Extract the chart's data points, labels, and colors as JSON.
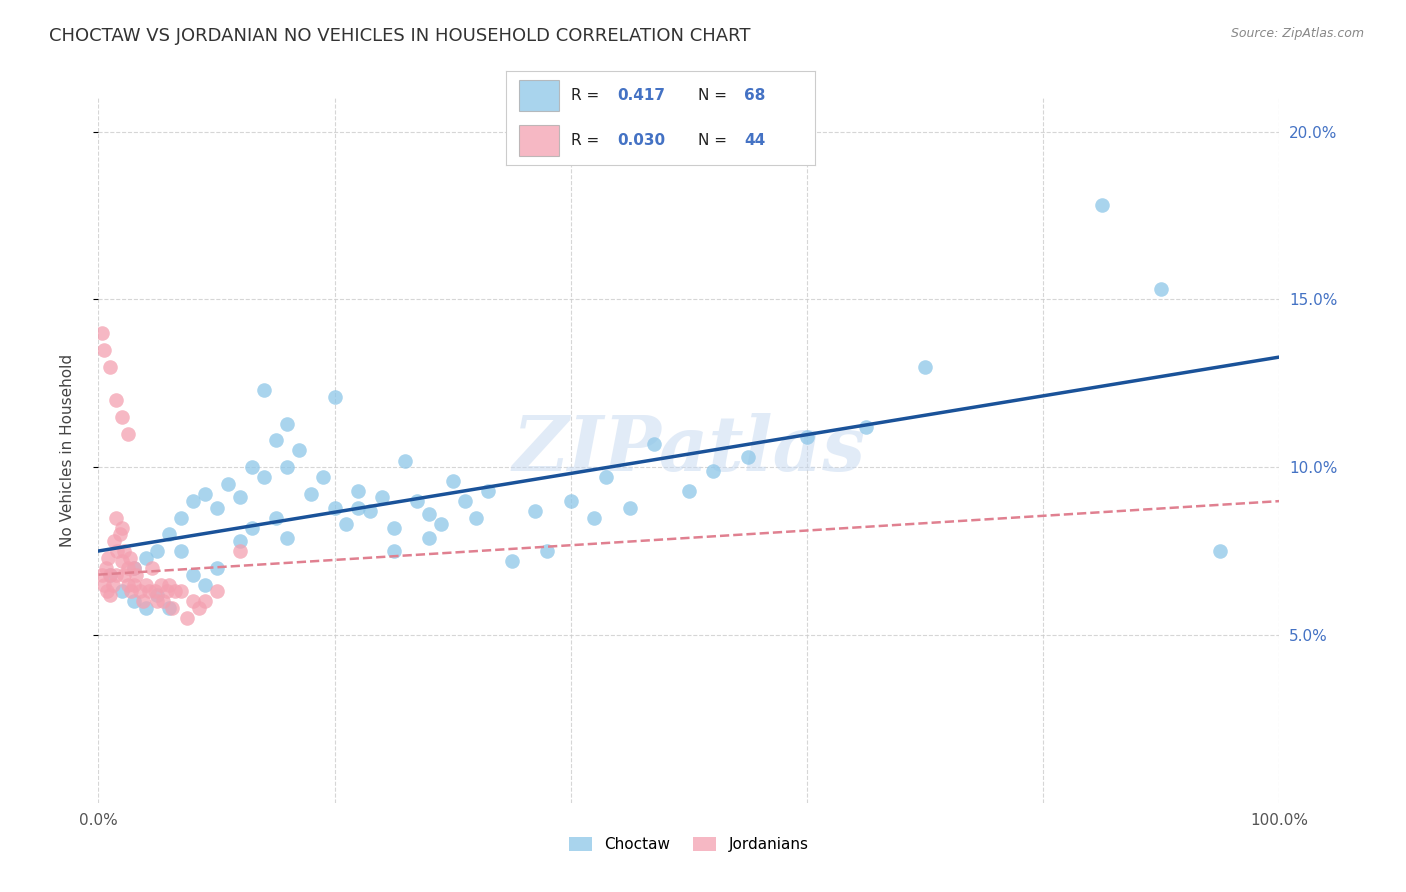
{
  "title": "CHOCTAW VS JORDANIAN NO VEHICLES IN HOUSEHOLD CORRELATION CHART",
  "source": "Source: ZipAtlas.com",
  "ylabel": "No Vehicles in Household",
  "xlim": [
    0,
    1.0
  ],
  "ylim": [
    0,
    0.21
  ],
  "xticks": [
    0.0,
    0.2,
    0.4,
    0.6,
    0.8,
    1.0
  ],
  "xticklabels": [
    "0.0%",
    "",
    "",
    "",
    "",
    "100.0%"
  ],
  "yticks": [
    0.05,
    0.1,
    0.15,
    0.2
  ],
  "yticklabels": [
    "5.0%",
    "10.0%",
    "15.0%",
    "20.0%"
  ],
  "choctaw_color": "#8dc6e8",
  "jordanian_color": "#f4a0b0",
  "choctaw_line_color": "#1a5299",
  "jordanian_line_color": "#e08090",
  "background_color": "#ffffff",
  "grid_color": "#cccccc",
  "watermark": "ZIPatlas",
  "legend_R_color": "#4472c4",
  "legend_N_color": "#4472c4",
  "choctaw_x": [
    0.01,
    0.02,
    0.03,
    0.03,
    0.04,
    0.04,
    0.05,
    0.05,
    0.06,
    0.06,
    0.07,
    0.07,
    0.08,
    0.08,
    0.09,
    0.09,
    0.1,
    0.1,
    0.11,
    0.12,
    0.12,
    0.13,
    0.13,
    0.14,
    0.15,
    0.15,
    0.16,
    0.16,
    0.17,
    0.18,
    0.19,
    0.2,
    0.21,
    0.22,
    0.23,
    0.24,
    0.25,
    0.26,
    0.27,
    0.28,
    0.29,
    0.3,
    0.31,
    0.32,
    0.33,
    0.35,
    0.37,
    0.38,
    0.4,
    0.42,
    0.43,
    0.45,
    0.47,
    0.5,
    0.52,
    0.55,
    0.6,
    0.65,
    0.7,
    0.85,
    0.9,
    0.95,
    0.14,
    0.16,
    0.2,
    0.22,
    0.25,
    0.28
  ],
  "choctaw_y": [
    0.068,
    0.063,
    0.07,
    0.06,
    0.073,
    0.058,
    0.075,
    0.062,
    0.08,
    0.058,
    0.085,
    0.075,
    0.09,
    0.068,
    0.092,
    0.065,
    0.088,
    0.07,
    0.095,
    0.091,
    0.078,
    0.1,
    0.082,
    0.097,
    0.108,
    0.085,
    0.1,
    0.079,
    0.105,
    0.092,
    0.097,
    0.088,
    0.083,
    0.093,
    0.087,
    0.091,
    0.082,
    0.102,
    0.09,
    0.086,
    0.083,
    0.096,
    0.09,
    0.085,
    0.093,
    0.072,
    0.087,
    0.075,
    0.09,
    0.085,
    0.097,
    0.088,
    0.107,
    0.093,
    0.099,
    0.103,
    0.109,
    0.112,
    0.13,
    0.178,
    0.153,
    0.075,
    0.123,
    0.113,
    0.121,
    0.088,
    0.075,
    0.079
  ],
  "jordanian_x": [
    0.003,
    0.005,
    0.006,
    0.007,
    0.008,
    0.01,
    0.01,
    0.012,
    0.013,
    0.015,
    0.015,
    0.016,
    0.018,
    0.02,
    0.02,
    0.022,
    0.022,
    0.025,
    0.025,
    0.027,
    0.028,
    0.03,
    0.03,
    0.032,
    0.035,
    0.038,
    0.04,
    0.043,
    0.045,
    0.048,
    0.05,
    0.053,
    0.055,
    0.058,
    0.06,
    0.062,
    0.065,
    0.07,
    0.075,
    0.08,
    0.085,
    0.09,
    0.1,
    0.12
  ],
  "jordanian_y": [
    0.068,
    0.065,
    0.07,
    0.063,
    0.073,
    0.068,
    0.062,
    0.065,
    0.078,
    0.085,
    0.068,
    0.075,
    0.08,
    0.082,
    0.072,
    0.075,
    0.068,
    0.07,
    0.065,
    0.073,
    0.063,
    0.07,
    0.065,
    0.068,
    0.063,
    0.06,
    0.065,
    0.063,
    0.07,
    0.063,
    0.06,
    0.065,
    0.06,
    0.063,
    0.065,
    0.058,
    0.063,
    0.063,
    0.055,
    0.06,
    0.058,
    0.06,
    0.063,
    0.075
  ],
  "jordanian_outliers_x": [
    0.003,
    0.005,
    0.01,
    0.015,
    0.02,
    0.025
  ],
  "jordanian_outliers_y": [
    0.14,
    0.135,
    0.13,
    0.12,
    0.115,
    0.11
  ]
}
